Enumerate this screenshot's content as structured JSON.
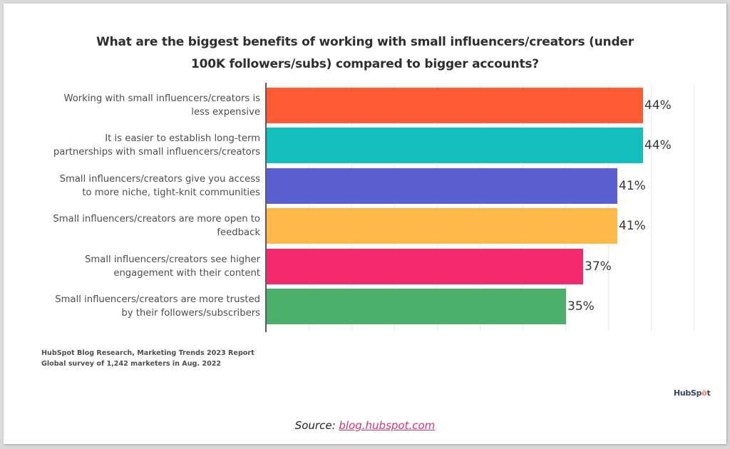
{
  "chart_data": {
    "type": "bar",
    "orientation": "horizontal",
    "title": "What are the biggest benefits of working with small influencers/creators (under 100K followers/subs) compared to bigger accounts?",
    "title_lines": [
      "What are the biggest benefits of working with small influencers/creators (under",
      "100K followers/subs) compared to bigger accounts?"
    ],
    "xlabel": "",
    "ylabel": "",
    "xlim": [
      0,
      50
    ],
    "grid": true,
    "grid_step": 5,
    "value_suffix": "%",
    "categories": [
      "Working with small influencers/creators is less expensive",
      "It is easier to establish long-term partnerships with small influencers/creators",
      "Small influencers/creators give you access to more niche, tight-knit communities",
      "Small influencers/creators are more open to feedback",
      "Small influencers/creators see higher engagement with their content",
      "Small influencers/creators are more trusted by their followers/subscribers"
    ],
    "category_lines": [
      [
        "Working with small influencers/creators is",
        "less expensive"
      ],
      [
        "It is easier to establish long-term",
        "partnerships with small influencers/creators"
      ],
      [
        "Small influencers/creators give you access",
        "to more niche, tight-knit communities"
      ],
      [
        "Small influencers/creators are more open to",
        "feedback"
      ],
      [
        "Small influencers/creators see higher",
        "engagement with their content"
      ],
      [
        "Small influencers/creators are more trusted",
        "by their followers/subscribers"
      ]
    ],
    "values": [
      44,
      44,
      41,
      41,
      37,
      35
    ],
    "value_labels": [
      "44%",
      "44%",
      "41%",
      "41%",
      "37%",
      "35%"
    ],
    "colors": [
      "#ff5c35",
      "#13bfbd",
      "#5b5fd1",
      "#ffb94a",
      "#f42a6e",
      "#4caf6a"
    ],
    "legend": null
  },
  "footnote": {
    "line1": "HubSpot Blog Research, Marketing Trends 2023 Report",
    "line2": "Global survey of 1,242 marketers in Aug. 2022"
  },
  "logo": {
    "text_before": "HubSp",
    "sprocket": "ö",
    "text_after": "t"
  },
  "source": {
    "prefix": "Source: ",
    "link_text": "blog.hubspot.com"
  }
}
